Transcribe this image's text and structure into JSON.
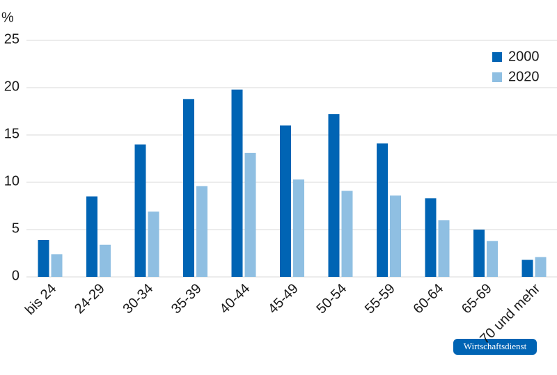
{
  "chart_data": {
    "type": "bar",
    "y_label": "%",
    "categories": [
      "bis 24",
      "24-29",
      "30-34",
      "35-39",
      "40-44",
      "45-49",
      "50-54",
      "55-59",
      "60-64",
      "65-69",
      "70 und mehr"
    ],
    "series": [
      {
        "name": "2000",
        "color": "#0064b4",
        "values": [
          3.9,
          8.5,
          14.0,
          18.8,
          19.8,
          16.0,
          17.2,
          14.1,
          8.3,
          5.0,
          1.8
        ]
      },
      {
        "name": "2020",
        "color": "#8fbfe2",
        "values": [
          2.4,
          3.4,
          6.9,
          9.6,
          13.1,
          10.3,
          9.1,
          8.6,
          6.0,
          3.8,
          2.1
        ]
      }
    ],
    "ylim": [
      0,
      25
    ],
    "yticks": [
      0,
      5,
      10,
      15,
      20,
      25
    ],
    "grid": true,
    "legend": "top-right",
    "source": "Wirtschaftsdienst"
  }
}
